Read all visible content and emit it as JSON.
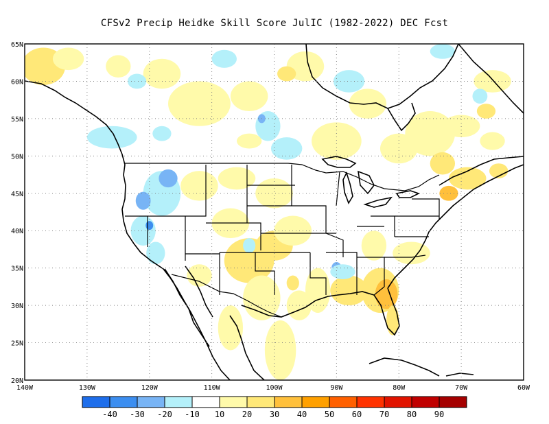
{
  "title": "CFSv2 Precip Heidke Skill Score JulIC (1982-2022) DEC Fcst",
  "map": {
    "lat_labels": [
      "65N",
      "60N",
      "55N",
      "50N",
      "45N",
      "40N",
      "35N",
      "30N",
      "25N",
      "20N"
    ],
    "lon_labels": [
      "140W",
      "130W",
      "120W",
      "110W",
      "100W",
      "90W",
      "80W",
      "70W",
      "60W"
    ],
    "lat_range": [
      20,
      65
    ],
    "lon_range": [
      -140,
      -60
    ],
    "grid": "dotted"
  },
  "colorbar": {
    "labels": [
      "-40",
      "-30",
      "-20",
      "-10",
      "10",
      "20",
      "30",
      "40",
      "50",
      "60",
      "70",
      "80",
      "90"
    ],
    "colors": [
      "#1e6eeb",
      "#3c8ef0",
      "#78b4f5",
      "#b4f0fa",
      "#ffffff",
      "#fffaaa",
      "#ffe878",
      "#ffc03c",
      "#ffa000",
      "#ff6000",
      "#ff3200",
      "#e11400",
      "#c00000",
      "#a50000"
    ]
  },
  "shading": {
    "skill_colors": {
      "neg10": "#b4f0fa",
      "neg20": "#78b4f5",
      "neg30": "#3c8ef0",
      "pos10": "#fffaaa",
      "pos20": "#ffe878",
      "pos30": "#ffc03c"
    }
  }
}
